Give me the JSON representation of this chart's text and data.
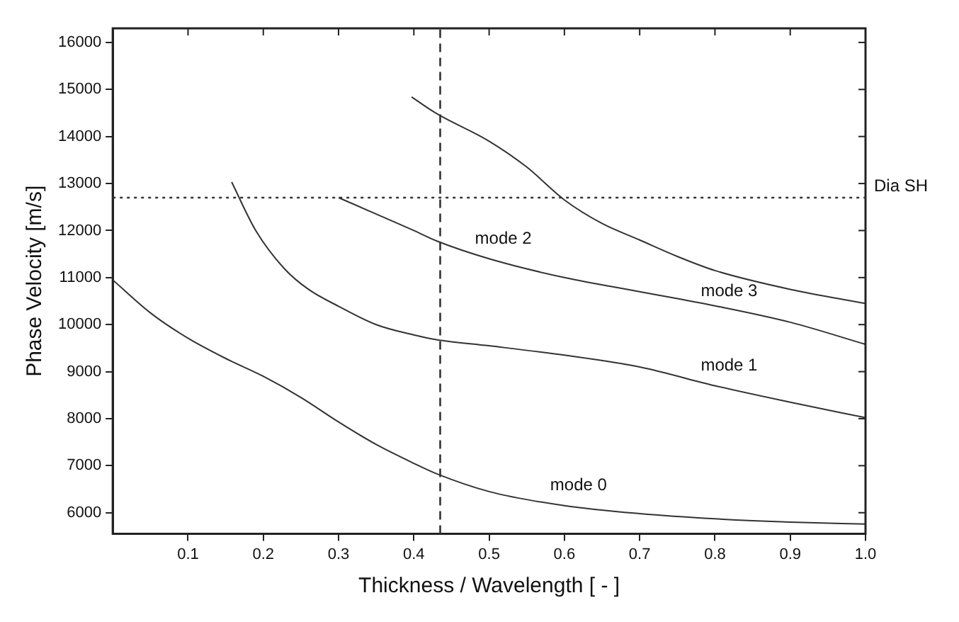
{
  "chart_data": {
    "type": "line",
    "xlabel": "Thickness / Wavelength [ - ]",
    "ylabel": "Phase Velocity [m/s]",
    "xlim": [
      0,
      1
    ],
    "xticks": [
      0.1,
      0.2,
      0.3,
      0.4,
      0.5,
      0.6,
      0.7,
      0.8,
      0.9,
      {
        "value": 1,
        "label": "1.0"
      }
    ],
    "ylim": [
      5550,
      16300
    ],
    "yticks": [
      6000,
      7000,
      8000,
      9000,
      10000,
      11000,
      12000,
      13000,
      14000,
      15000,
      16000
    ],
    "grid": false,
    "marker": "none",
    "line_style": "solid",
    "series": [
      {
        "name": "mode 0",
        "color": "#333333",
        "x": [
          0,
          0.05,
          0.1,
          0.15,
          0.2,
          0.25,
          0.3,
          0.35,
          0.4,
          0.43,
          0.5,
          0.6,
          0.7,
          0.8,
          0.9,
          1.0
        ],
        "values": [
          10950,
          10250,
          9710,
          9280,
          8900,
          8450,
          7930,
          7450,
          7050,
          6830,
          6450,
          6150,
          5980,
          5870,
          5800,
          5760
        ]
      },
      {
        "name": "mode 1",
        "color": "#333333",
        "x": [
          0.158,
          0.19,
          0.228,
          0.26,
          0.3,
          0.35,
          0.4,
          0.43,
          0.5,
          0.6,
          0.7,
          0.8,
          0.9,
          1.0
        ],
        "values": [
          13030,
          12000,
          11190,
          10750,
          10390,
          10000,
          9780,
          9680,
          9550,
          9350,
          9100,
          8700,
          8350,
          8020
        ]
      },
      {
        "name": "mode 2",
        "color": "#333333",
        "x": [
          0.3,
          0.35,
          0.4,
          0.43,
          0.5,
          0.6,
          0.7,
          0.8,
          0.9,
          1.0
        ],
        "values": [
          12700,
          12350,
          12000,
          11780,
          11400,
          11000,
          10700,
          10400,
          10050,
          9580
        ]
      },
      {
        "name": "mode 3",
        "color": "#333333",
        "x": [
          0.397,
          0.43,
          0.5,
          0.55,
          0.6,
          0.65,
          0.7,
          0.75,
          0.8,
          0.9,
          1.0
        ],
        "values": [
          14840,
          14490,
          13900,
          13350,
          12650,
          12150,
          11800,
          11450,
          11150,
          10750,
          10450
        ]
      }
    ],
    "ref_lines": [
      {
        "axis": "y",
        "value": 12700,
        "label": "Dia SH",
        "line_style": "dotted",
        "color": "#333333"
      },
      {
        "axis": "x",
        "value": 0.435,
        "line_style": "dashed",
        "color": "#333333"
      }
    ],
    "legend": false
  }
}
